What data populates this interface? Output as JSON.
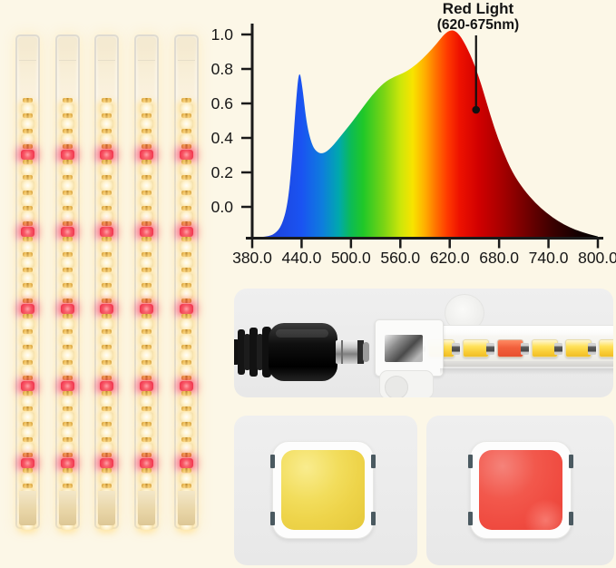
{
  "page": {
    "background": "#fcf7e7"
  },
  "strips": {
    "count": 5,
    "leds_per_strip": 28,
    "red_led_indices": [
      3,
      8,
      13,
      18,
      23
    ],
    "clips_per_strip": 4,
    "colors": {
      "warm_led": "#fff3cf",
      "red_led": "#f23a52",
      "gold_contact": "#d69a20",
      "tube": "#faf2df"
    }
  },
  "chart_data": {
    "type": "area",
    "title": "",
    "xlabel": "",
    "ylabel": "",
    "x_ticks": [
      "380.0",
      "440.0",
      "500.0",
      "560.0",
      "620.0",
      "680.0",
      "740.0",
      "800.0"
    ],
    "y_ticks": [
      "0.0",
      "0.2",
      "0.4",
      "0.6",
      "0.8",
      "1.0"
    ],
    "xlim": [
      380,
      800
    ],
    "ylim": [
      0,
      1.05
    ],
    "grid": false,
    "legend_position": "none",
    "axis_color": "#1a1a1a",
    "annotation": {
      "line1": "Red Light",
      "line2": "(620-675nm)",
      "target_nm": 652,
      "target_intensity": 0.55
    },
    "series": [
      {
        "name": "LED spectrum (normalized intensity vs wavelength nm)",
        "points": [
          [
            380,
            0.0
          ],
          [
            398,
            0.004
          ],
          [
            408,
            0.02
          ],
          [
            416,
            0.06
          ],
          [
            423,
            0.16
          ],
          [
            428,
            0.36
          ],
          [
            433,
            0.66
          ],
          [
            437,
            0.83
          ],
          [
            441,
            0.74
          ],
          [
            446,
            0.56
          ],
          [
            452,
            0.46
          ],
          [
            458,
            0.42
          ],
          [
            466,
            0.41
          ],
          [
            476,
            0.44
          ],
          [
            488,
            0.5
          ],
          [
            500,
            0.56
          ],
          [
            513,
            0.63
          ],
          [
            526,
            0.7
          ],
          [
            540,
            0.76
          ],
          [
            553,
            0.79
          ],
          [
            566,
            0.81
          ],
          [
            580,
            0.85
          ],
          [
            593,
            0.9
          ],
          [
            604,
            0.95
          ],
          [
            614,
            1.0
          ],
          [
            622,
            1.02
          ],
          [
            630,
            1.005
          ],
          [
            638,
            0.955
          ],
          [
            647,
            0.88
          ],
          [
            656,
            0.78
          ],
          [
            665,
            0.66
          ],
          [
            674,
            0.54
          ],
          [
            684,
            0.43
          ],
          [
            696,
            0.32
          ],
          [
            710,
            0.235
          ],
          [
            724,
            0.17
          ],
          [
            738,
            0.12
          ],
          [
            752,
            0.08
          ],
          [
            766,
            0.05
          ],
          [
            780,
            0.028
          ],
          [
            800,
            0.006
          ]
        ]
      }
    ],
    "spectrum_gradient": [
      [
        380,
        "#2038cc"
      ],
      [
        440,
        "#1a53f2"
      ],
      [
        465,
        "#0e7ddd"
      ],
      [
        485,
        "#00a8ae"
      ],
      [
        500,
        "#0cbb55"
      ],
      [
        515,
        "#20c828"
      ],
      [
        540,
        "#7ad414"
      ],
      [
        560,
        "#cce60a"
      ],
      [
        575,
        "#f8e400"
      ],
      [
        590,
        "#ffae00"
      ],
      [
        603,
        "#ff7300"
      ],
      [
        617,
        "#ff3a00"
      ],
      [
        632,
        "#ee1200"
      ],
      [
        655,
        "#d10000"
      ],
      [
        685,
        "#a40000"
      ],
      [
        715,
        "#6f0000"
      ],
      [
        745,
        "#3b0000"
      ],
      [
        775,
        "#150000"
      ],
      [
        800,
        "#000000"
      ]
    ]
  },
  "connector_panel": {
    "plug": "dc-barrel-power-plug",
    "strip": "led-strip-closeup",
    "led_chip_types": [
      "warm",
      "warm",
      "red",
      "warm",
      "warm",
      "warm"
    ],
    "colors": {
      "panel": "#ececec",
      "plug_body": "#151515",
      "plug_tip_metal": "#c8c8c8",
      "warm_chip": "#ffd94e",
      "red_chip": "#f0603c"
    }
  },
  "chip_panels": {
    "warm": {
      "label": "warm-white-led-chip",
      "color": "#efd84e"
    },
    "red": {
      "label": "red-led-chip",
      "color": "#f14c41"
    }
  }
}
